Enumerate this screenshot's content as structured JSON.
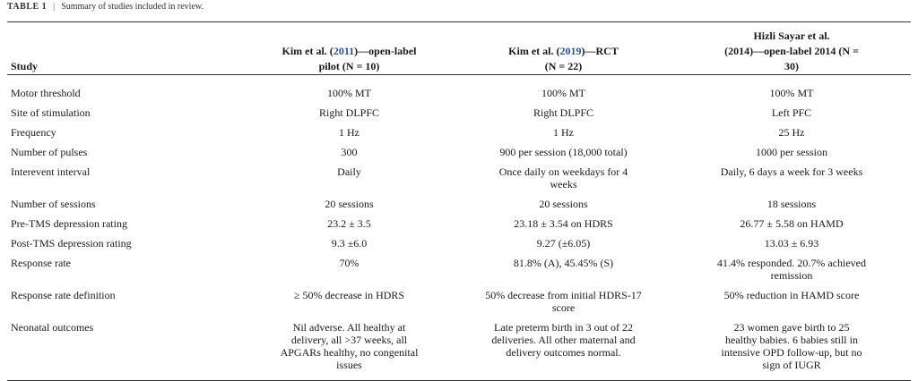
{
  "caption": {
    "table_number": "TABLE 1",
    "separator": "|",
    "title": "Summary of studies included in review."
  },
  "header": {
    "study_label": "Study",
    "columns": [
      {
        "lines_pre": [
          "Kim et al. ("
        ],
        "cite": "2011",
        "lines_post": [
          ")—open-label",
          "pilot (N = 10)"
        ]
      },
      {
        "lines_pre": [
          "Kim et al. ("
        ],
        "cite": "2019",
        "lines_post": [
          ")—RCT",
          "(N = 22)"
        ]
      },
      {
        "lines": [
          "Hizli Sayar et al.",
          "(2014)—open-label 2014 (N =",
          "30)"
        ]
      }
    ]
  },
  "rows": [
    {
      "label": "Motor threshold",
      "cells": [
        [
          "100% MT"
        ],
        [
          "100% MT"
        ],
        [
          "100% MT"
        ]
      ]
    },
    {
      "label": "Site of stimulation",
      "cells": [
        [
          "Right DLPFC"
        ],
        [
          "Right DLPFC"
        ],
        [
          "Left PFC"
        ]
      ]
    },
    {
      "label": "Frequency",
      "cells": [
        [
          "1 Hz"
        ],
        [
          "1 Hz"
        ],
        [
          "25 Hz"
        ]
      ]
    },
    {
      "label": "Number of pulses",
      "cells": [
        [
          "300"
        ],
        [
          "900 per session (18,000 total)"
        ],
        [
          "1000 per session"
        ]
      ]
    },
    {
      "label": "Interevent interval",
      "cells": [
        [
          "Daily"
        ],
        [
          "Once daily on weekdays for 4",
          "weeks"
        ],
        [
          "Daily, 6 days a week for 3 weeks"
        ]
      ]
    },
    {
      "label": "Number of sessions",
      "cells": [
        [
          "20 sessions"
        ],
        [
          "20 sessions"
        ],
        [
          "18 sessions"
        ]
      ]
    },
    {
      "label": "Pre-TMS depression rating",
      "cells": [
        [
          "23.2 ± 3.5"
        ],
        [
          "23.18 ± 3.54 on HDRS"
        ],
        [
          "26.77 ± 5.58 on HAMD"
        ]
      ]
    },
    {
      "label": "Post-TMS depression rating",
      "cells": [
        [
          "9.3 ±6.0"
        ],
        [
          "9.27 (±6.05)"
        ],
        [
          "13.03 ± 6.93"
        ]
      ]
    },
    {
      "label": "Response rate",
      "cells": [
        [
          "70%"
        ],
        [
          "81.8% (A), 45.45% (S)"
        ],
        [
          "41.4% responded. 20.7% achieved",
          "remission"
        ]
      ]
    },
    {
      "label": "Response rate definition",
      "cells": [
        [
          "≥ 50% decrease in HDRS"
        ],
        [
          "50% decrease from initial HDRS-17",
          "score"
        ],
        [
          "50% reduction in HAMD score"
        ]
      ]
    },
    {
      "label": "Neonatal outcomes",
      "cells": [
        [
          "Nil adverse. All healthy at",
          "delivery, all >37 weeks, all",
          "APGARs healthy, no congenital",
          "issues"
        ],
        [
          "Late preterm birth in 3 out of 22",
          "deliveries. All other maternal and",
          "delivery outcomes normal."
        ],
        [
          "23 women gave birth to 25",
          "healthy babies. 6 babies still in",
          "intensive OPD follow-up, but no",
          "sign of IUGR"
        ]
      ]
    }
  ]
}
